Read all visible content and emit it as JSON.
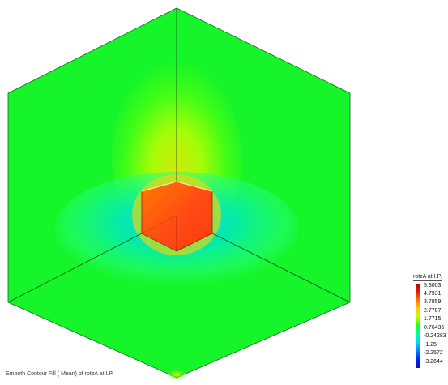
{
  "caption": "Smooth Contour Fill ( Mean) of rotzA at I.P.",
  "legend": {
    "title": "rotzA at I.P.",
    "values": [
      "5.8003",
      "4.7931",
      "3.7859",
      "2.7787",
      "1.7715",
      "0.76436",
      "-0.24283",
      "-1.25",
      "-2.2572",
      "-3.2644"
    ]
  },
  "colors": {
    "background_field": "#16f52a",
    "hot_cube": "#ff4a14",
    "cool_ring": "#00e2b5"
  },
  "icons": {
    "legend_swatch": "vertical-colorbar"
  }
}
